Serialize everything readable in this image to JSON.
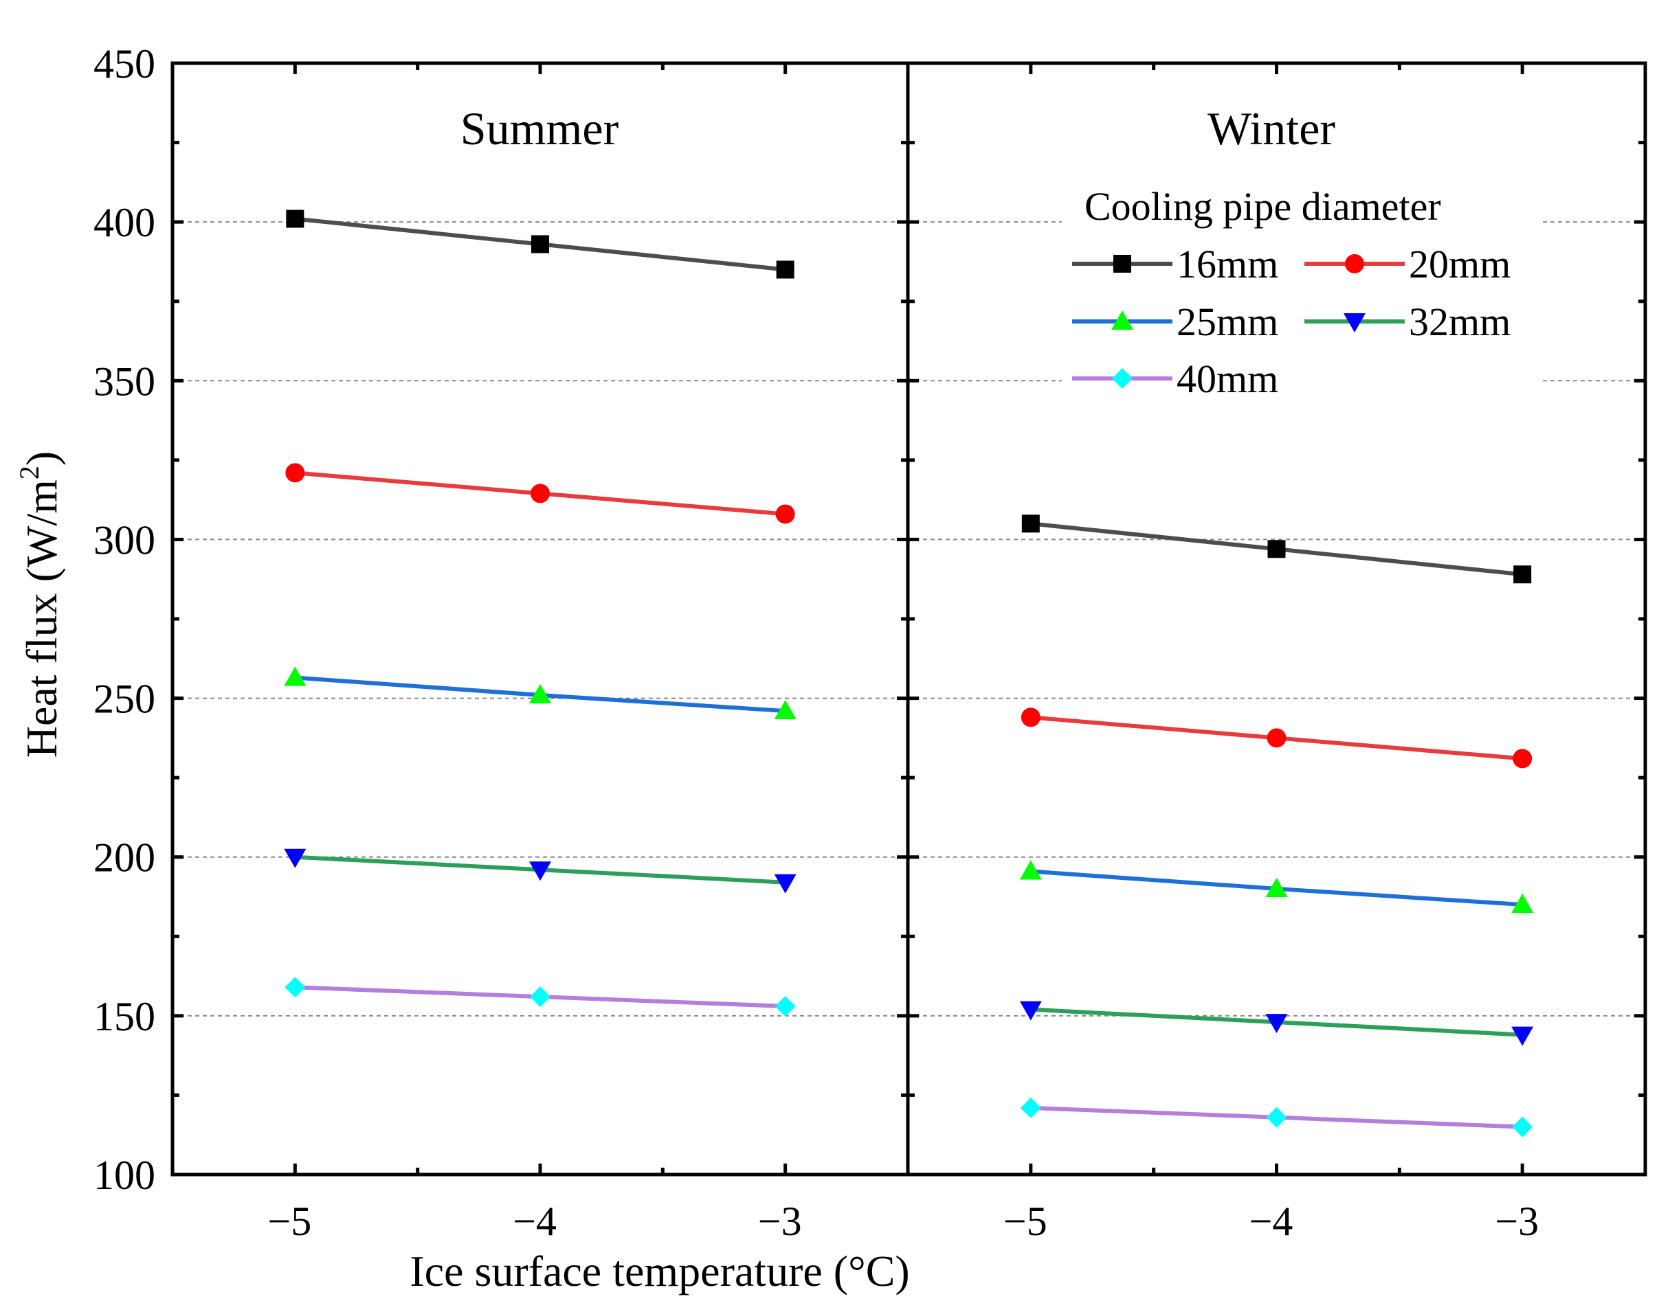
{
  "chart_data": {
    "type": "line",
    "ylabel": "Heat flux (W/m",
    "ylabel_sup": "2",
    "ylabel_close": ")",
    "xlabel": "Ice surface temperature (°C)",
    "ylim": [
      100,
      450
    ],
    "yticks": [
      100,
      150,
      200,
      250,
      300,
      350,
      400,
      450
    ],
    "ytick_labels": [
      "100",
      "150",
      "200",
      "250",
      "300",
      "350",
      "400",
      "450"
    ],
    "xlim": [
      -5.5,
      -2.5
    ],
    "xticks": [
      -5,
      -4,
      -3
    ],
    "xtick_labels": [
      "−5",
      "−4",
      "−3"
    ],
    "grid": "horizontal dashed",
    "legend": {
      "title": "Cooling pipe diameter",
      "placement": "top-right"
    },
    "panels": [
      {
        "title": "Summer",
        "series": [
          {
            "name": "16mm",
            "x": [
              -5,
              -4,
              -3
            ],
            "values": [
              401,
              393,
              385
            ]
          },
          {
            "name": "20mm",
            "x": [
              -5,
              -4,
              -3
            ],
            "values": [
              321,
              314.5,
              308
            ]
          },
          {
            "name": "25mm",
            "x": [
              -5,
              -4,
              -3
            ],
            "values": [
              256.5,
              251,
              246
            ]
          },
          {
            "name": "32mm",
            "x": [
              -5,
              -4,
              -3
            ],
            "values": [
              200,
              196,
              192
            ]
          },
          {
            "name": "40mm",
            "x": [
              -5,
              -4,
              -3
            ],
            "values": [
              159,
              156,
              153
            ]
          }
        ]
      },
      {
        "title": "Winter",
        "series": [
          {
            "name": "16mm",
            "x": [
              -5,
              -4,
              -3
            ],
            "values": [
              305,
              297,
              289
            ]
          },
          {
            "name": "20mm",
            "x": [
              -5,
              -4,
              -3
            ],
            "values": [
              244,
              237.5,
              231
            ]
          },
          {
            "name": "25mm",
            "x": [
              -5,
              -4,
              -3
            ],
            "values": [
              195.5,
              190,
              185
            ]
          },
          {
            "name": "32mm",
            "x": [
              -5,
              -4,
              -3
            ],
            "values": [
              152,
              148,
              144
            ]
          },
          {
            "name": "40mm",
            "x": [
              -5,
              -4,
              -3
            ],
            "values": [
              121,
              118,
              115
            ]
          }
        ]
      }
    ],
    "series_styles": [
      {
        "name": "16mm",
        "line_color": "#4d4d4d",
        "marker": "square",
        "marker_color": "#000000"
      },
      {
        "name": "20mm",
        "line_color": "#e83c3c",
        "marker": "circle",
        "marker_color": "#ff0000"
      },
      {
        "name": "25mm",
        "line_color": "#1f6fd8",
        "marker": "triangle-up",
        "marker_color": "#00ff00"
      },
      {
        "name": "32mm",
        "line_color": "#2e9e5b",
        "marker": "triangle-down",
        "marker_color": "#0000ff"
      },
      {
        "name": "40mm",
        "line_color": "#b57edc",
        "marker": "diamond",
        "marker_color": "#00ffff"
      }
    ]
  }
}
